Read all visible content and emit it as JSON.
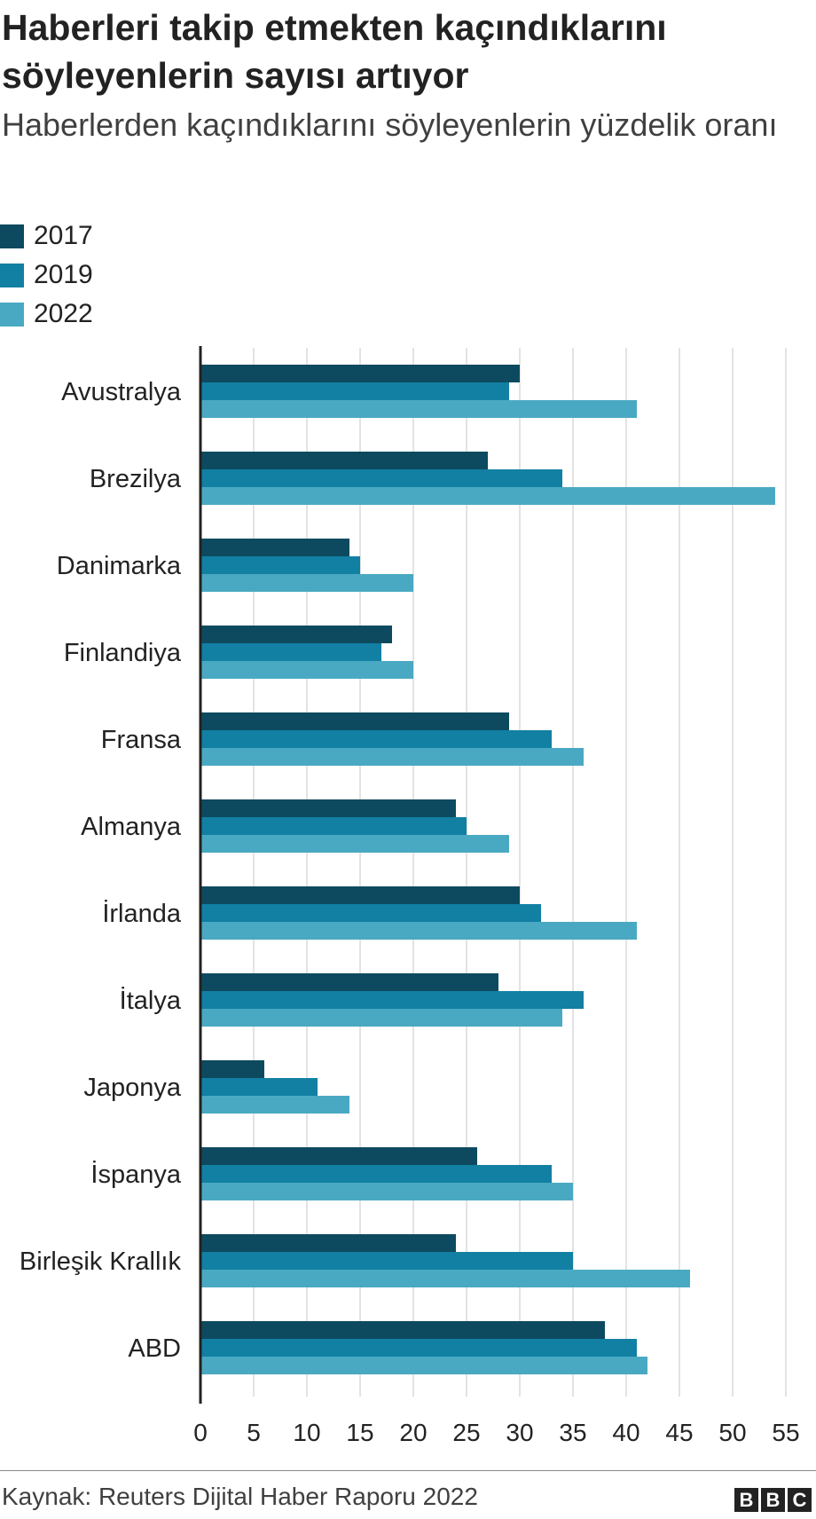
{
  "chart_data": {
    "type": "bar",
    "orientation": "horizontal",
    "title": "Haberleri takip etmekten kaçındıklarını söyleyenlerin sayısı artıyor",
    "subtitle": "Haberlerden kaçındıklarını söyleyenlerin yüzdelik oranı",
    "categories": [
      "Avustralya",
      "Brezilya",
      "Danimarka",
      "Finlandiya",
      "Fransa",
      "Almanya",
      "İrlanda",
      "İtalya",
      "Japonya",
      "İspanya",
      "Birleşik Krallık",
      "ABD"
    ],
    "series": [
      {
        "name": "2017",
        "color": "#0e4a5f",
        "values": [
          30,
          27,
          14,
          18,
          29,
          24,
          30,
          28,
          6,
          26,
          24,
          38
        ]
      },
      {
        "name": "2019",
        "color": "#1180a3",
        "values": [
          29,
          34,
          15,
          17,
          33,
          25,
          32,
          36,
          11,
          33,
          35,
          41
        ]
      },
      {
        "name": "2022",
        "color": "#4aa9c2",
        "values": [
          41,
          54,
          20,
          20,
          36,
          29,
          41,
          34,
          14,
          35,
          46,
          42
        ]
      }
    ],
    "xlim": [
      0,
      55
    ],
    "xticks": [
      0,
      5,
      10,
      15,
      20,
      25,
      30,
      35,
      40,
      45,
      50,
      55
    ],
    "grid": true,
    "legend_position": "top-left",
    "source": "Kaynak: Reuters Dijital Haber Raporu 2022"
  },
  "logo": {
    "letters": [
      "B",
      "B",
      "C"
    ]
  },
  "colors": {
    "gridline": "#d0d0d0",
    "axis": "#222222"
  }
}
